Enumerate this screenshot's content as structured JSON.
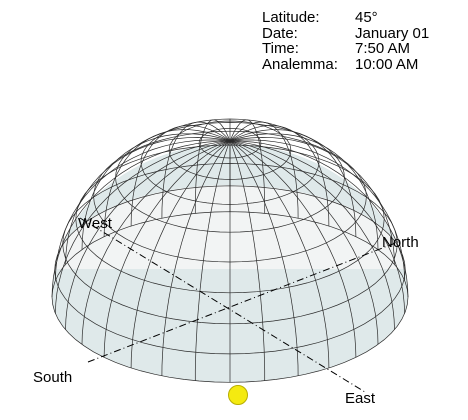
{
  "info": {
    "latitude_label": "Latitude:",
    "latitude_value": "45°",
    "date_label": "Date:",
    "date_value": "January 01",
    "time_label": "Time:",
    "time_value": "7:50 AM",
    "analemma_label": "Analemma:",
    "analemma_value": "10:00 AM"
  },
  "directions": {
    "west": "West",
    "north": "North",
    "south": "South",
    "east": "East"
  },
  "colors": {
    "dome_line": "#2b2b2b",
    "dome_fill": "#dfe9ea",
    "dome_inner": "#f2f4f4",
    "sun": "#f4ea10",
    "sun_stroke": "#b8ae00"
  }
}
